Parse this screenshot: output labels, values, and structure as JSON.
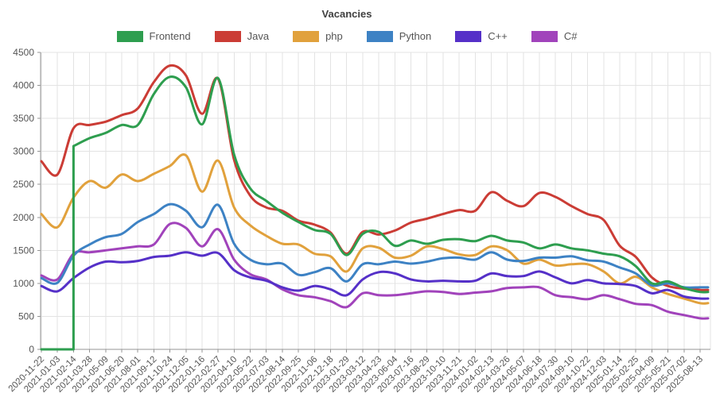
{
  "title": "Vacancies",
  "theme": {
    "background": "#ffffff",
    "grid_color": "#e3e3e3",
    "axis_color": "#949494",
    "label_color": "#555555",
    "title_color": "#404040"
  },
  "chart_data": {
    "type": "line",
    "title": "Vacancies",
    "xlabel": "",
    "ylabel": "",
    "ylim": [
      0,
      4500
    ],
    "y_ticks": [
      0,
      500,
      1000,
      1500,
      2000,
      2500,
      3000,
      3500,
      4000,
      4500
    ],
    "grid": true,
    "legend_position": "top-center",
    "x": [
      "2020-11-22",
      "2021-01-03",
      "2021-02-14",
      "2021-03-28",
      "2021-05-09",
      "2021-06-20",
      "2021-08-01",
      "2021-09-12",
      "2021-10-24",
      "2021-12-05",
      "2022-01-16",
      "2022-02-27",
      "2022-04-10",
      "2022-05-22",
      "2022-07-03",
      "2022-08-14",
      "2022-09-25",
      "2022-11-06",
      "2022-12-18",
      "2023-01-29",
      "2023-03-12",
      "2023-04-23",
      "2023-06-04",
      "2023-07-16",
      "2023-08-29",
      "2023-10-10",
      "2023-11-21",
      "2024-01-02",
      "2024-02-13",
      "2024-03-26",
      "2024-05-07",
      "2024-06-18",
      "2024-07-30",
      "2024-09-10",
      "2024-10-22",
      "2024-12-03",
      "2025-01-14",
      "2025-02-25",
      "2025-04-09",
      "2025-05-21",
      "2025-07-02",
      "2025-08-13"
    ],
    "series": [
      {
        "name": "Frontend",
        "color": "#2e9e4f",
        "values": [
          0,
          0,
          3080,
          3200,
          3280,
          3400,
          3400,
          3870,
          4130,
          3970,
          3410,
          4110,
          2950,
          2440,
          2250,
          2070,
          1930,
          1810,
          1750,
          1430,
          1750,
          1780,
          1570,
          1650,
          1600,
          1660,
          1670,
          1640,
          1720,
          1650,
          1620,
          1530,
          1590,
          1530,
          1500,
          1450,
          1410,
          1260,
          1000,
          1030,
          930,
          870
        ]
      },
      {
        "name": "Java",
        "color": "#cb3c35",
        "values": [
          2850,
          2650,
          3350,
          3400,
          3450,
          3550,
          3650,
          4050,
          4300,
          4150,
          3570,
          4100,
          2870,
          2330,
          2150,
          2100,
          1950,
          1890,
          1770,
          1450,
          1780,
          1740,
          1800,
          1920,
          1980,
          2050,
          2110,
          2100,
          2380,
          2250,
          2170,
          2370,
          2310,
          2170,
          2050,
          1960,
          1570,
          1400,
          1090,
          960,
          920,
          900
        ]
      },
      {
        "name": "php",
        "color": "#e1a13c",
        "values": [
          2050,
          1850,
          2300,
          2550,
          2450,
          2650,
          2550,
          2660,
          2780,
          2940,
          2390,
          2860,
          2150,
          1880,
          1720,
          1600,
          1590,
          1450,
          1410,
          1180,
          1530,
          1540,
          1390,
          1420,
          1560,
          1520,
          1440,
          1430,
          1560,
          1500,
          1300,
          1360,
          1270,
          1290,
          1290,
          1180,
          1000,
          1100,
          940,
          840,
          770,
          700
        ]
      },
      {
        "name": "Python",
        "color": "#3d82c4",
        "values": [
          1080,
          1010,
          1420,
          1590,
          1700,
          1750,
          1930,
          2050,
          2200,
          2100,
          1850,
          2190,
          1600,
          1360,
          1290,
          1300,
          1130,
          1170,
          1230,
          1030,
          1290,
          1290,
          1330,
          1300,
          1330,
          1380,
          1390,
          1360,
          1470,
          1360,
          1340,
          1390,
          1390,
          1410,
          1350,
          1330,
          1240,
          1150,
          970,
          1000,
          940,
          940
        ]
      },
      {
        "name": "C++",
        "color": "#5530c8",
        "values": [
          960,
          880,
          1080,
          1240,
          1330,
          1320,
          1340,
          1400,
          1420,
          1470,
          1420,
          1460,
          1200,
          1090,
          1040,
          940,
          890,
          960,
          910,
          820,
          1060,
          1170,
          1150,
          1060,
          1030,
          1040,
          1030,
          1040,
          1150,
          1110,
          1110,
          1180,
          1090,
          1000,
          1050,
          1000,
          990,
          960,
          850,
          900,
          800,
          770
        ]
      },
      {
        "name": "C#",
        "color": "#a143bb",
        "values": [
          1120,
          1060,
          1450,
          1470,
          1500,
          1530,
          1560,
          1590,
          1900,
          1840,
          1560,
          1820,
          1360,
          1140,
          1060,
          910,
          820,
          790,
          730,
          640,
          850,
          820,
          820,
          850,
          880,
          870,
          840,
          860,
          880,
          930,
          940,
          940,
          820,
          790,
          760,
          820,
          760,
          690,
          670,
          570,
          520,
          470
        ]
      }
    ]
  }
}
